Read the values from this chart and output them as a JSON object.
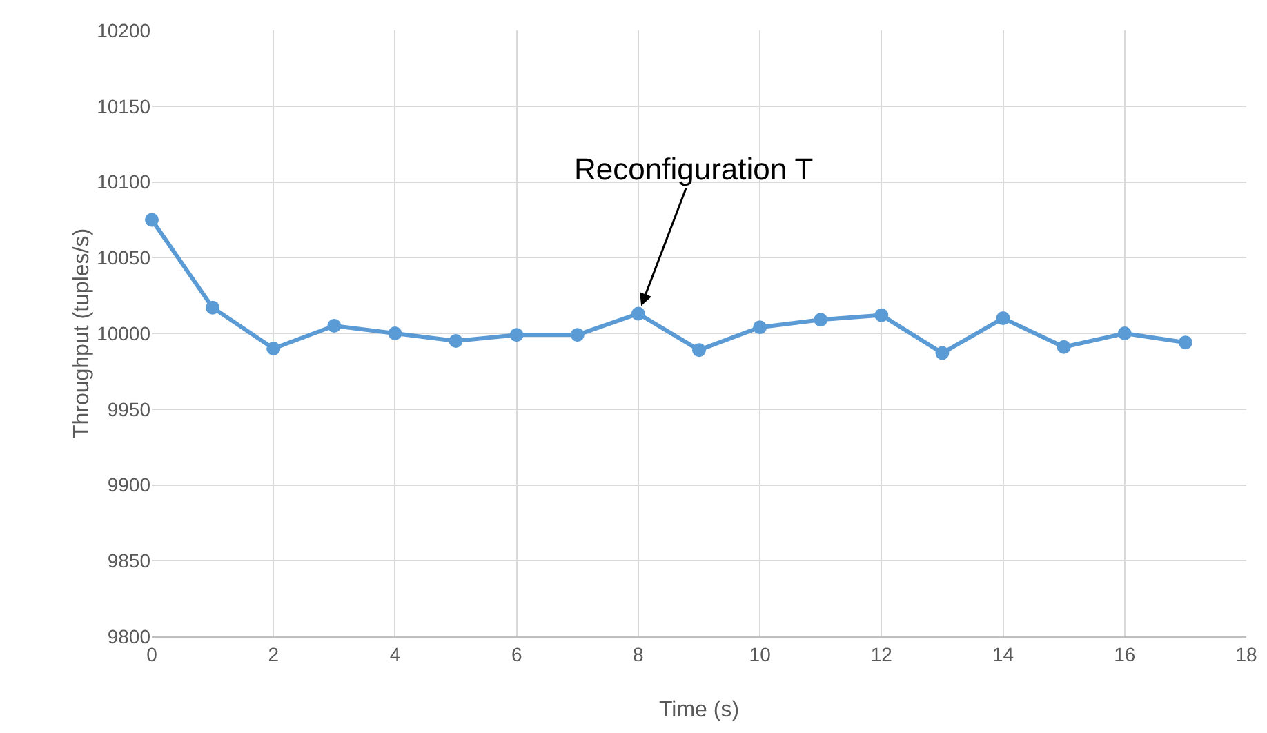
{
  "chart_data": {
    "type": "line",
    "xlabel": "Time (s)",
    "ylabel": "Throughput (tuples/s)",
    "x": [
      0,
      1,
      2,
      3,
      4,
      5,
      6,
      7,
      8,
      9,
      10,
      11,
      12,
      13,
      14,
      15,
      16,
      17
    ],
    "series": [
      {
        "color": "#5b9bd5",
        "values": [
          10075,
          10017,
          9990,
          10005,
          10000,
          9995,
          9999,
          9999,
          10013,
          9989,
          10004,
          10009,
          10012,
          9987,
          10010,
          9991,
          10000,
          9994
        ]
      }
    ],
    "xlim": [
      0,
      18
    ],
    "xticks": [
      0,
      2,
      4,
      6,
      8,
      10,
      12,
      14,
      16,
      18
    ],
    "ylim": [
      9800,
      10200
    ],
    "yticks": [
      9800,
      9850,
      9900,
      9950,
      10000,
      10050,
      10100,
      10150,
      10200
    ],
    "grid": true,
    "marker": "circle",
    "line_style": "solid",
    "annotations": [
      {
        "text": "Reconfiguration T",
        "x": 8,
        "y": 10013
      }
    ]
  }
}
